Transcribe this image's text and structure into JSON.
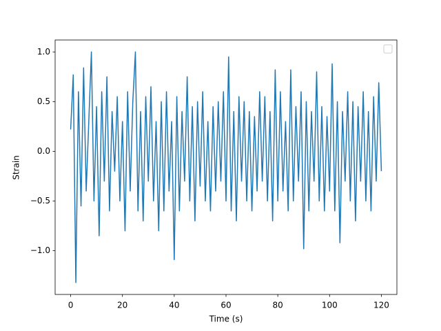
{
  "chart_data": {
    "type": "line",
    "xlabel": "Time (s)",
    "ylabel": "Strain",
    "color": "#1f77b4",
    "x": [
      0,
      1,
      2,
      3,
      4,
      5,
      6,
      7,
      8,
      9,
      10,
      11,
      12,
      13,
      14,
      15,
      16,
      17,
      18,
      19,
      20,
      21,
      22,
      23,
      24,
      25,
      26,
      27,
      28,
      29,
      30,
      31,
      32,
      33,
      34,
      35,
      36,
      37,
      38,
      39,
      40,
      41,
      42,
      43,
      44,
      45,
      46,
      47,
      48,
      49,
      50,
      51,
      52,
      53,
      54,
      55,
      56,
      57,
      58,
      59,
      60,
      61,
      62,
      63,
      64,
      65,
      66,
      67,
      68,
      69,
      70,
      71,
      72,
      73,
      74,
      75,
      76,
      77,
      78,
      79,
      80,
      81,
      82,
      83,
      84,
      85,
      86,
      87,
      88,
      89,
      90,
      91,
      92,
      93,
      94,
      95,
      96,
      97,
      98,
      99,
      100,
      101,
      102,
      103,
      104,
      105,
      106,
      107,
      108,
      109,
      110,
      111,
      112,
      113,
      114,
      115,
      116,
      117,
      118,
      119,
      120
    ],
    "values": [
      0.22,
      0.77,
      -1.32,
      0.6,
      -0.55,
      0.84,
      -0.4,
      0.3,
      1.0,
      -0.5,
      0.45,
      -0.85,
      0.6,
      -0.3,
      0.75,
      -0.6,
      0.4,
      -0.2,
      0.55,
      -0.5,
      0.3,
      -0.8,
      0.6,
      -0.4,
      0.5,
      1.0,
      -0.6,
      0.4,
      -0.7,
      0.55,
      -0.3,
      0.65,
      -0.5,
      0.3,
      -0.8,
      0.5,
      -0.6,
      0.6,
      -0.4,
      0.3,
      -1.09,
      0.55,
      -0.6,
      0.4,
      -0.3,
      0.75,
      -0.5,
      0.45,
      -0.7,
      0.5,
      -0.35,
      0.6,
      -0.5,
      0.3,
      -0.6,
      0.45,
      -0.4,
      0.5,
      -0.3,
      0.6,
      -0.5,
      0.95,
      -0.6,
      0.4,
      -0.7,
      0.55,
      -0.3,
      0.5,
      -0.5,
      0.4,
      -0.6,
      0.35,
      -0.4,
      0.6,
      -0.3,
      0.55,
      -0.5,
      0.4,
      -0.7,
      0.82,
      -0.5,
      0.6,
      -0.4,
      0.3,
      -0.6,
      0.82,
      -0.5,
      0.45,
      -0.3,
      0.6,
      -0.98,
      0.5,
      -0.6,
      0.4,
      -0.3,
      0.8,
      -0.5,
      0.45,
      -0.6,
      0.35,
      -0.4,
      0.88,
      -0.6,
      0.5,
      -0.92,
      0.4,
      -0.3,
      0.6,
      -0.5,
      0.5,
      -0.7,
      0.45,
      -0.3,
      0.6,
      -0.5,
      0.4,
      -0.6,
      0.55,
      -0.3,
      0.69,
      -0.2
    ],
    "xlim": [
      -6,
      126
    ],
    "xticks": [
      0,
      20,
      40,
      60,
      80,
      100,
      120
    ],
    "ylim": [
      -1.44,
      1.12
    ],
    "yticks": [
      {
        "value": -1.0,
        "label": "−1.0"
      },
      {
        "value": -0.5,
        "label": "−0.5"
      },
      {
        "value": 0,
        "label": "0.0"
      },
      {
        "value": 0.5,
        "label": "0.5"
      },
      {
        "value": 1.0,
        "label": "1.0"
      }
    ],
    "legend": "upper right"
  }
}
